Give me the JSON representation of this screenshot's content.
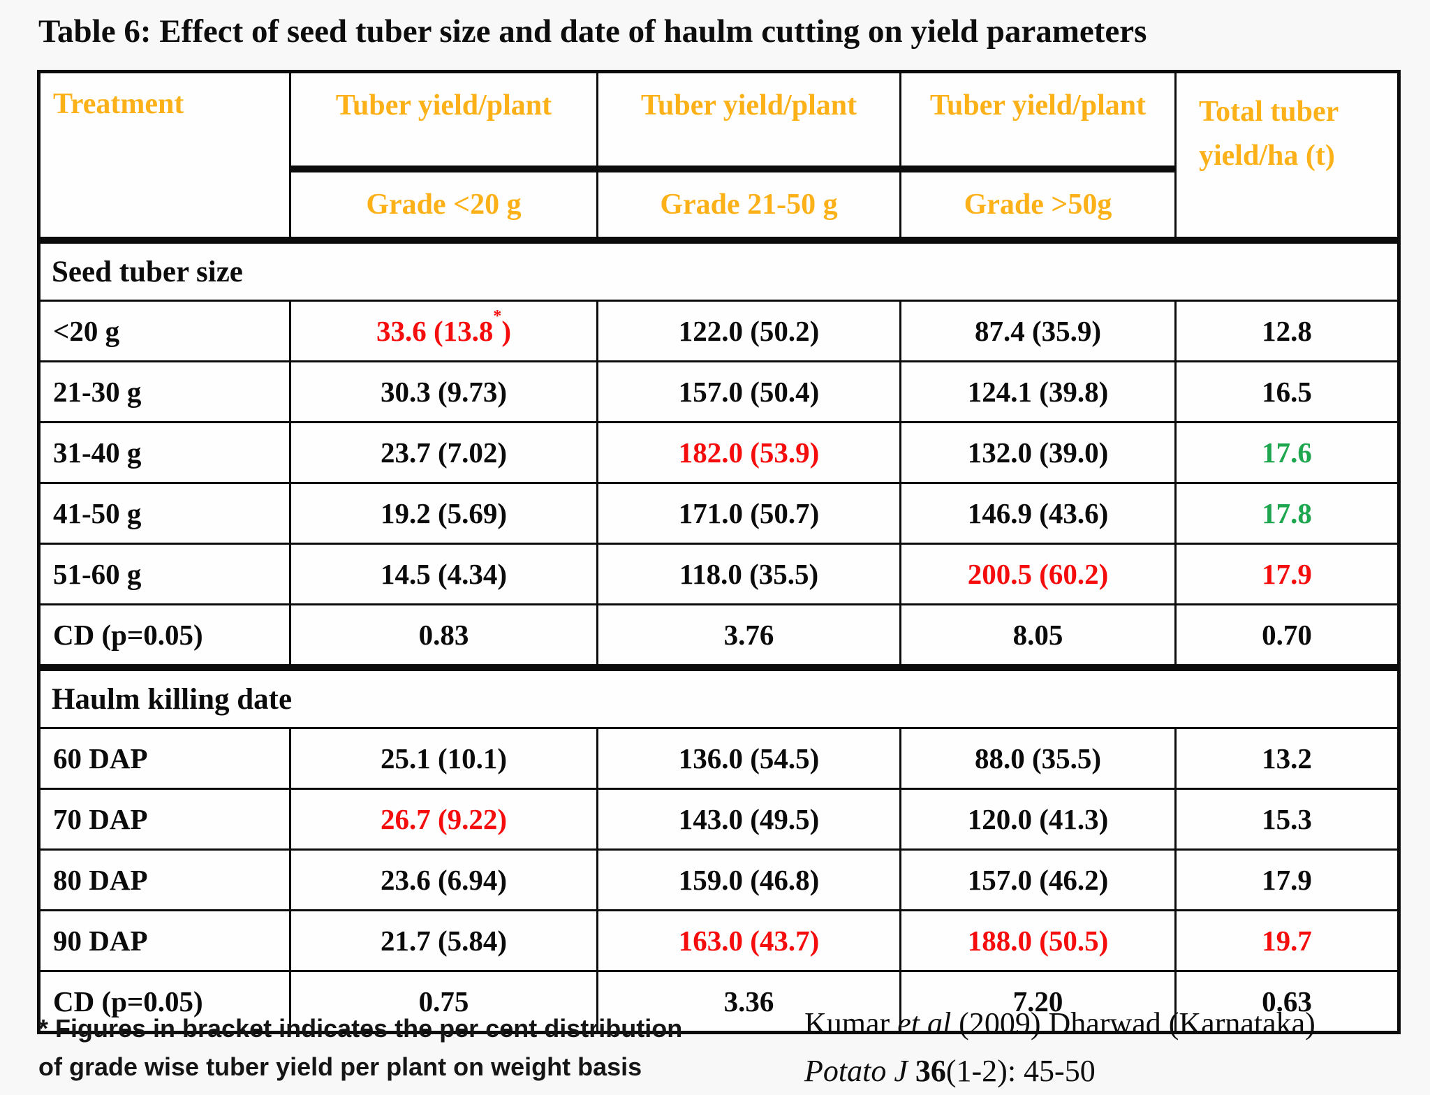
{
  "slide_title": "Table 6: Effect of seed tuber size and date of haulm cutting on yield parameters",
  "colors": {
    "header_text": "#FBB117",
    "highlight_red": "#F50D0D",
    "highlight_green": "#1FA750",
    "border": "#0C0C0C"
  },
  "table": {
    "header": {
      "treatment": "Treatment",
      "group_cols": [
        "Tuber yield/plant",
        "Tuber yield/plant",
        "Tuber yield/plant"
      ],
      "sub_cols": [
        "Grade <20 g",
        "Grade 21-50 g",
        "Grade >50g"
      ],
      "total_col": "Total tuber yield/ha (t)"
    },
    "sections": [
      {
        "label": "Seed tuber size",
        "rows": [
          {
            "treatment": "<20 g",
            "cells": [
              {
                "t": "33.6 (13.8*)",
                "c": "red"
              },
              {
                "t": "122.0 (50.2)"
              },
              {
                "t": "87.4 (35.9)"
              },
              {
                "t": "12.8"
              }
            ]
          },
          {
            "treatment": "21-30 g",
            "cells": [
              {
                "t": "30.3 (9.73)"
              },
              {
                "t": "157.0 (50.4)"
              },
              {
                "t": "124.1 (39.8)"
              },
              {
                "t": "16.5"
              }
            ]
          },
          {
            "treatment": "31-40 g",
            "cells": [
              {
                "t": "23.7 (7.02)"
              },
              {
                "t": "182.0 (53.9)",
                "c": "red"
              },
              {
                "t": "132.0 (39.0)"
              },
              {
                "t": "17.6",
                "c": "green"
              }
            ]
          },
          {
            "treatment": "41-50 g",
            "cells": [
              {
                "t": "19.2 (5.69)"
              },
              {
                "t": "171.0 (50.7)"
              },
              {
                "t": "146.9 (43.6)"
              },
              {
                "t": "17.8",
                "c": "green"
              }
            ]
          },
          {
            "treatment": "51-60 g",
            "cells": [
              {
                "t": "14.5 (4.34)"
              },
              {
                "t": "118.0 (35.5)"
              },
              {
                "t": "200.5 (60.2)",
                "c": "red"
              },
              {
                "t": "17.9",
                "c": "red"
              }
            ]
          },
          {
            "treatment": "CD (p=0.05)",
            "cells": [
              {
                "t": "0.83"
              },
              {
                "t": "3.76"
              },
              {
                "t": "8.05"
              },
              {
                "t": "0.70"
              }
            ]
          }
        ]
      },
      {
        "label": "Haulm killing date",
        "rows": [
          {
            "treatment": "60 DAP",
            "cells": [
              {
                "t": "25.1 (10.1)"
              },
              {
                "t": "136.0 (54.5)"
              },
              {
                "t": "88.0 (35.5)"
              },
              {
                "t": "13.2"
              }
            ]
          },
          {
            "treatment": "70 DAP",
            "cells": [
              {
                "t": "26.7 (9.22)",
                "c": "red"
              },
              {
                "t": "143.0 (49.5)"
              },
              {
                "t": "120.0 (41.3)"
              },
              {
                "t": "15.3"
              }
            ]
          },
          {
            "treatment": "80 DAP",
            "cells": [
              {
                "t": "23.6 (6.94)"
              },
              {
                "t": "159.0 (46.8)"
              },
              {
                "t": "157.0 (46.2)"
              },
              {
                "t": "17.9"
              }
            ]
          },
          {
            "treatment": "90 DAP",
            "cells": [
              {
                "t": "21.7 (5.84)"
              },
              {
                "t": "163.0 (43.7)",
                "c": "red"
              },
              {
                "t": "188.0 (50.5)",
                "c": "red"
              },
              {
                "t": "19.7",
                "c": "red"
              }
            ]
          },
          {
            "treatment": "CD (p=0.05)",
            "cells": [
              {
                "t": "0.75"
              },
              {
                "t": "3.36"
              },
              {
                "t": "7.20"
              },
              {
                "t": "0.63"
              }
            ]
          }
        ]
      }
    ]
  },
  "footnote": {
    "line1": "* Figures in bracket indicates the per cent distribution",
    "line2": "of grade wise tuber yield per plant on weight basis"
  },
  "citation": {
    "line1_pre": "Kumar ",
    "line1_italic": "et al",
    "line1_post": " (2009) Dharwad (Karnataka)",
    "line2_italic": "Potato J ",
    "line2_bold": "36",
    "line2_post": "(1-2): 45-50"
  }
}
